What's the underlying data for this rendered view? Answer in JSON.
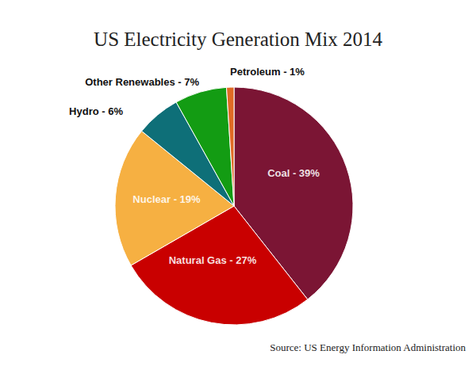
{
  "chart_data": {
    "type": "pie",
    "title": "US Electricity Generation Mix 2014",
    "categories": [
      "Coal",
      "Natural Gas",
      "Nuclear",
      "Hydro",
      "Other Renewables",
      "Petroleum"
    ],
    "values": [
      39,
      27,
      19,
      6,
      7,
      1
    ],
    "value_labels": [
      "Coal - 39%",
      "Natural Gas - 27%",
      "Nuclear - 19%",
      "Hydro - 6%",
      "Other Renewables - 7%",
      "Petroleum - 1%"
    ],
    "colors": [
      "#7b1534",
      "#c90000",
      "#f6b042",
      "#0e6f78",
      "#139c13",
      "#e06a24"
    ],
    "data_labels": true,
    "source": "Source: US Energy Information Administration"
  }
}
